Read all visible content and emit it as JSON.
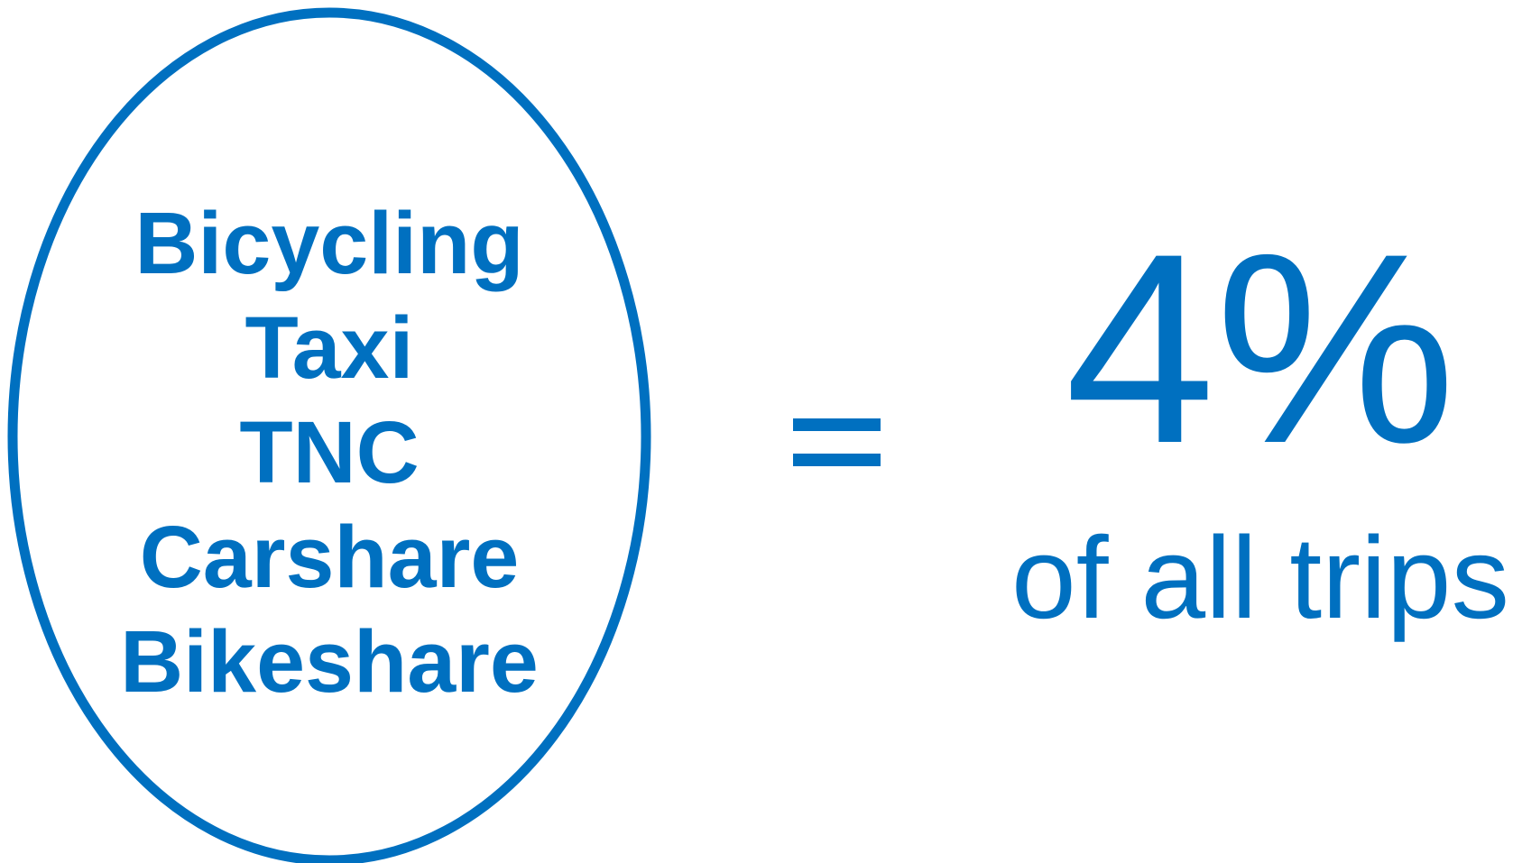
{
  "modes": [
    "Bicycling",
    "Taxi",
    "TNC",
    "Carshare",
    "Bikeshare"
  ],
  "statistic": "4%",
  "statistic_caption": "of all trips"
}
